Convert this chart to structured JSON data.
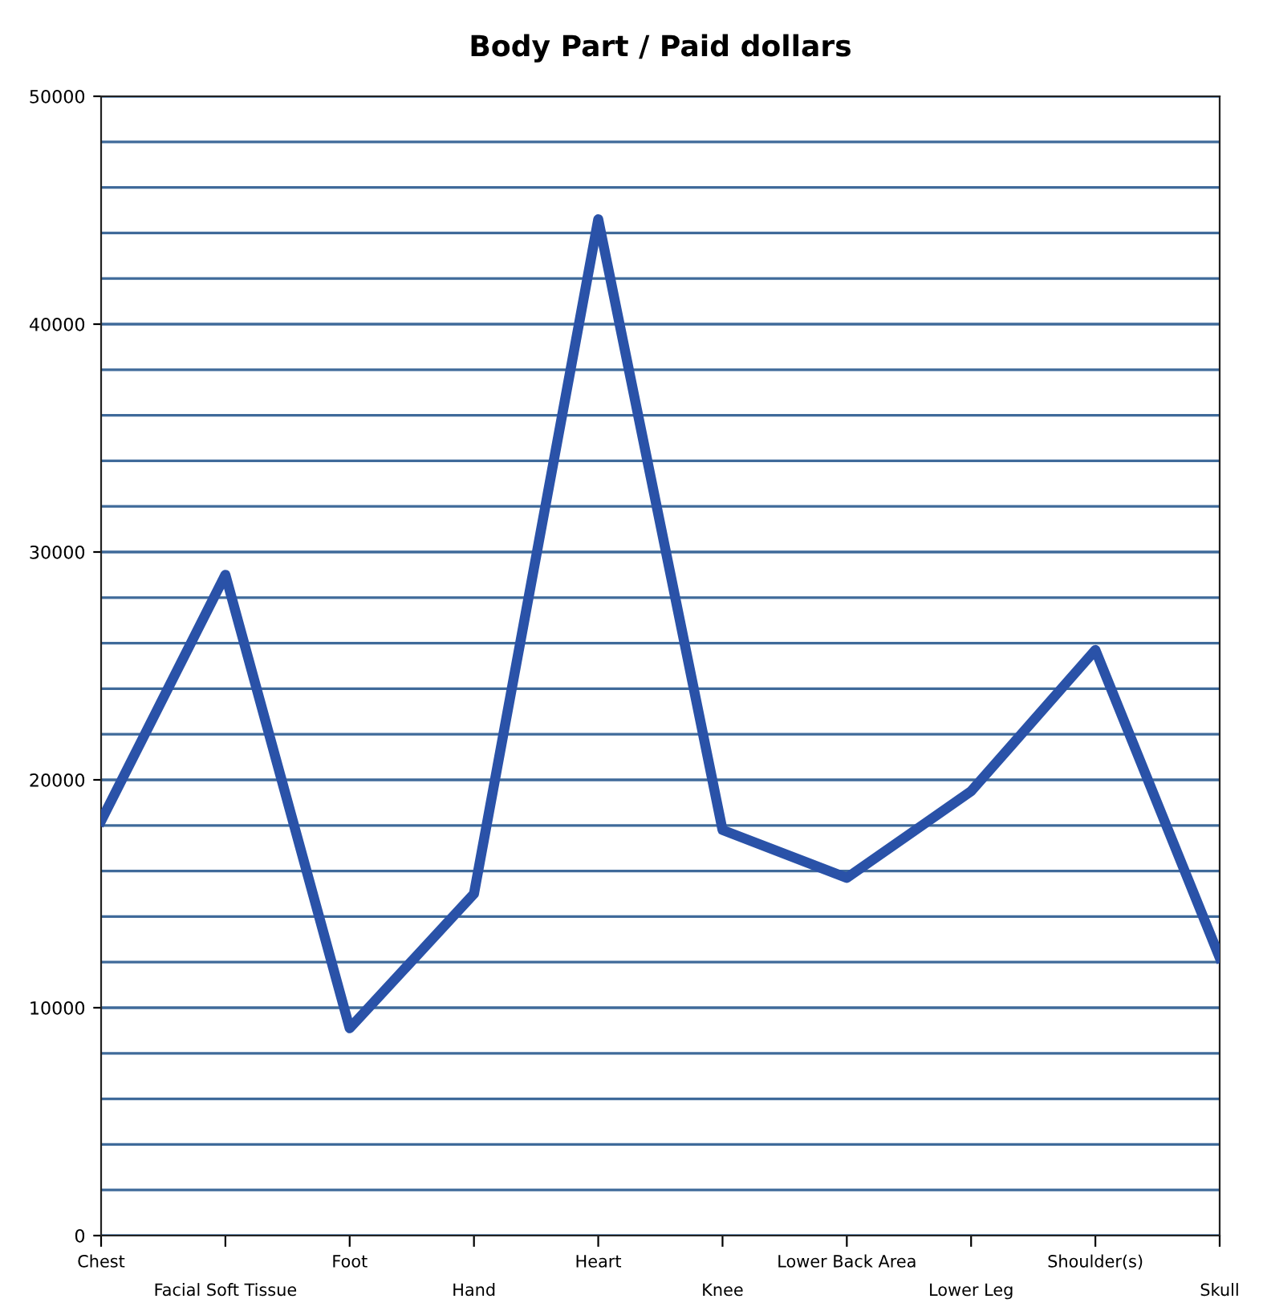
{
  "chart_data": {
    "type": "line",
    "title": "Body Part / Paid dollars",
    "categories": [
      "Chest",
      "Facial Soft Tissue",
      "Foot",
      "Hand",
      "Heart",
      "Knee",
      "Lower Back Area",
      "Lower Leg",
      "Shoulder(s)",
      "Skull"
    ],
    "series": [
      {
        "color": "#2a52a8",
        "values": [
          18200,
          29000,
          9100,
          15000,
          44600,
          17800,
          15700,
          19500,
          25700,
          12200
        ]
      }
    ],
    "ylim": [
      0,
      50000
    ],
    "yticks": [
      0,
      {
        "value": 2000,
        "label": null
      },
      {
        "value": 4000,
        "label": null
      },
      {
        "value": 6000,
        "label": null
      },
      {
        "value": 8000,
        "label": null
      },
      10000,
      {
        "value": 12000,
        "label": null
      },
      {
        "value": 14000,
        "label": null
      },
      {
        "value": 16000,
        "label": null
      },
      {
        "value": 18000,
        "label": null
      },
      20000,
      {
        "value": 22000,
        "label": null
      },
      {
        "value": 24000,
        "label": null
      },
      {
        "value": 26000,
        "label": null
      },
      {
        "value": 28000,
        "label": null
      },
      30000,
      {
        "value": 32000,
        "label": null
      },
      {
        "value": 34000,
        "label": null
      },
      {
        "value": 36000,
        "label": null
      },
      {
        "value": 38000,
        "label": null
      },
      40000,
      {
        "value": 42000,
        "label": null
      },
      {
        "value": 44000,
        "label": null
      },
      {
        "value": 46000,
        "label": null
      },
      {
        "value": 48000,
        "label": null
      },
      50000
    ],
    "grid": "y",
    "marker": "none",
    "line_style": "solid"
  }
}
